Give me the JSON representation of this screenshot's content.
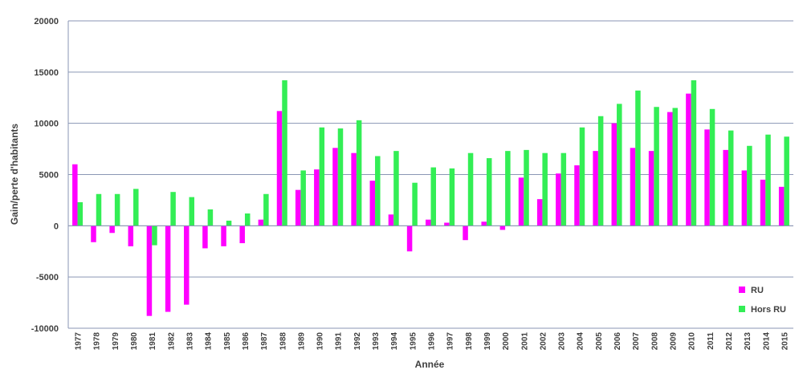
{
  "chart_data": {
    "type": "bar",
    "xlabel": "Année",
    "ylabel": "Gain/perte d'habitants",
    "ylim": [
      -10000,
      20000
    ],
    "yticks": [
      -10000,
      -5000,
      0,
      5000,
      10000,
      15000,
      20000
    ],
    "grid": true,
    "legend_position": "bottom-right",
    "categories": [
      "1977",
      "1978",
      "1979",
      "1980",
      "1981",
      "1982",
      "1983",
      "1984",
      "1985",
      "1986",
      "1987",
      "1988",
      "1989",
      "1990",
      "1991",
      "1992",
      "1993",
      "1994",
      "1995",
      "1996",
      "1997",
      "1998",
      "1999",
      "2000",
      "2001",
      "2002",
      "2003",
      "2004",
      "2005",
      "2006",
      "2007",
      "2008",
      "2009",
      "2010",
      "2011",
      "2012",
      "2013",
      "2014",
      "2015"
    ],
    "series": [
      {
        "name": "RU",
        "color": "#ff00ff",
        "values": [
          6000,
          -1600,
          -700,
          -2000,
          -8800,
          -8400,
          -7700,
          -2200,
          -2000,
          -1700,
          600,
          11200,
          3500,
          5500,
          7600,
          7100,
          4400,
          1100,
          -2500,
          600,
          300,
          -1400,
          400,
          -400,
          4700,
          2600,
          5100,
          5900,
          7300,
          10000,
          7600,
          7300,
          11100,
          12900,
          9400,
          7400,
          5400,
          4500,
          3800
        ]
      },
      {
        "name": "Hors RU",
        "color": "#33ee55",
        "values": [
          2300,
          3100,
          3100,
          3600,
          -1900,
          3300,
          2800,
          1600,
          500,
          1200,
          3100,
          14200,
          5400,
          9600,
          9500,
          10300,
          6800,
          7300,
          4200,
          5700,
          5600,
          7100,
          6600,
          7300,
          7400,
          7100,
          7100,
          9600,
          10700,
          11900,
          13200,
          11600,
          11500,
          14200,
          11400,
          9300,
          7800,
          8900,
          8700
        ]
      }
    ]
  }
}
